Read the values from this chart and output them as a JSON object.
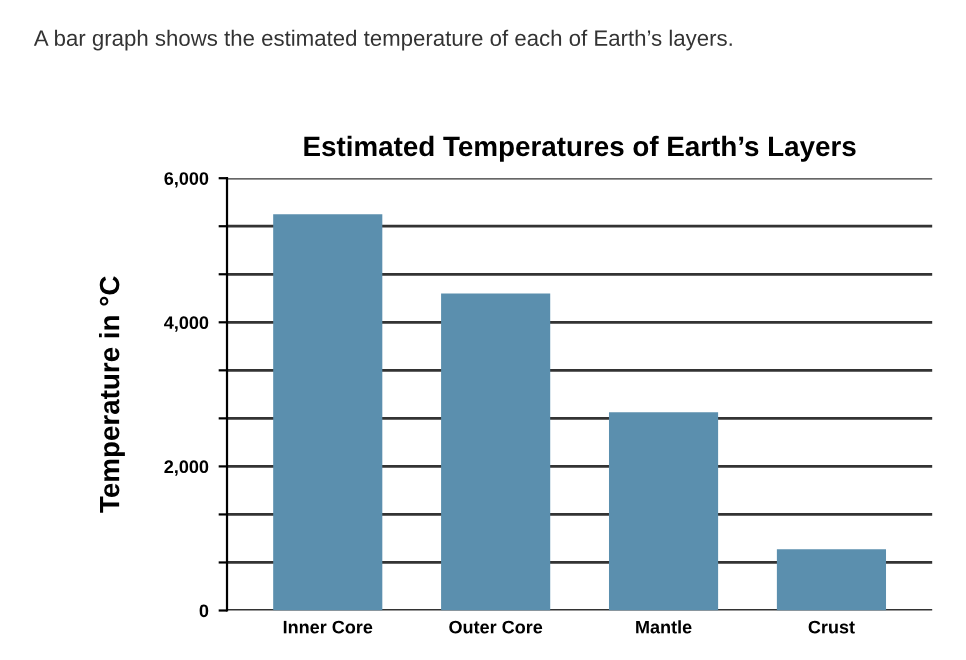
{
  "chart_data": {
    "type": "bar",
    "title": "Estimated Temperatures of Earth’s Layers",
    "ylabel": "Temperature in °C",
    "annotations": [
      "A bar graph shows the estimated temperature of each of Earth’s layers."
    ],
    "categories": [
      "Inner Core",
      "Outer Core",
      "Mantle",
      "Crust"
    ],
    "values": [
      5500,
      4400,
      2750,
      850
    ],
    "color": "#5b8fae",
    "ylim": [
      0,
      6000
    ],
    "yticks": [
      0,
      {
        "value": 666.7,
        "label": null
      },
      {
        "value": 1333.3,
        "label": null
      },
      {
        "value": 2000,
        "label": "2,000"
      },
      {
        "value": 2666.7,
        "label": null
      },
      {
        "value": 3333.3,
        "label": null
      },
      {
        "value": 4000,
        "label": "4,000"
      },
      {
        "value": 4666.7,
        "label": null
      },
      {
        "value": 5333.3,
        "label": null
      },
      {
        "value": 6000,
        "label": "6,000"
      }
    ],
    "grid": "y"
  }
}
